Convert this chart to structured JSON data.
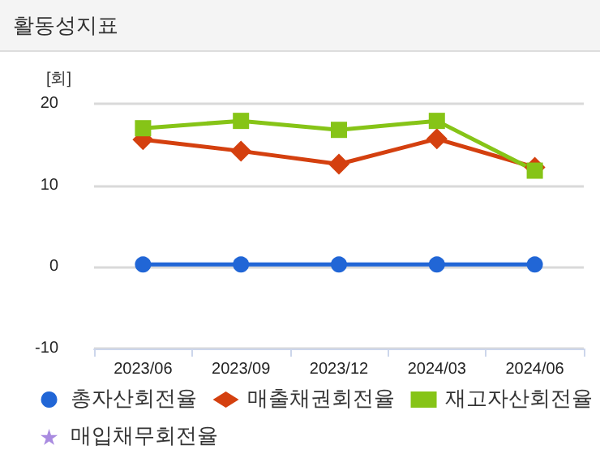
{
  "chart_data": {
    "type": "line",
    "title": "활동성지표",
    "ylabel": "[회]",
    "categories": [
      "2023/06",
      "2023/09",
      "2023/12",
      "2024/03",
      "2024/06"
    ],
    "series": [
      {
        "name": "총자산회전율",
        "color": "#2166d6",
        "marker": "circle",
        "values": [
          0.3,
          0.3,
          0.3,
          0.3,
          0.3
        ]
      },
      {
        "name": "매출채권회전율",
        "color": "#d4400f",
        "marker": "diamond",
        "values": [
          15.6,
          14.2,
          12.6,
          15.7,
          12.2
        ]
      },
      {
        "name": "재고자산회전율",
        "color": "#86c417",
        "marker": "square",
        "values": [
          17.0,
          17.9,
          16.8,
          17.9,
          11.8
        ]
      },
      {
        "name": "매입채무회전율",
        "color": "#a98be0",
        "marker": "star",
        "values": [
          null,
          null,
          null,
          null,
          null
        ]
      }
    ],
    "ylim": [
      -10,
      20
    ],
    "yticks": [
      -10,
      0,
      10,
      20
    ],
    "grid": "y",
    "legend": "bottom",
    "line_style": "solid"
  }
}
